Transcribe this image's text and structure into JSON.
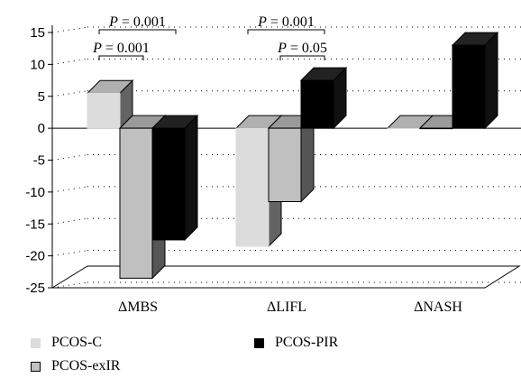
{
  "chart_data": {
    "type": "bar",
    "categories": [
      "ΔMBS",
      "ΔLIFL",
      "ΔNASH"
    ],
    "series": [
      {
        "name": "PCOS-C",
        "values": [
          5.5,
          -18.5,
          0
        ],
        "color": "#dcdcdc"
      },
      {
        "name": "PCOS-exIR",
        "values": [
          -23.5,
          -11.5,
          0
        ],
        "color": "#c0c0c0"
      },
      {
        "name": "PCOS-PIR",
        "values": [
          -17.5,
          7.5,
          13
        ],
        "color": "#000000"
      }
    ],
    "ylim": [
      -25,
      15
    ],
    "yticks": [
      "15",
      "10",
      "5",
      "0",
      "-5",
      "-10",
      "-15",
      "-20",
      "-25"
    ],
    "grid": true,
    "legend_position": "bottom",
    "annotations": [
      {
        "label": "P = 0.001",
        "category": "ΔMBS",
        "from_series": 0,
        "to_series": 2
      },
      {
        "label": "P = 0.001",
        "category": "ΔMBS",
        "from_series": 0,
        "to_series": 1
      },
      {
        "label": "P = 0.001",
        "category": "ΔLIFL",
        "from_series": 0,
        "to_series": 2
      },
      {
        "label": "P = 0.05",
        "category": "ΔLIFL",
        "from_series": 1,
        "to_series": 2
      }
    ]
  }
}
